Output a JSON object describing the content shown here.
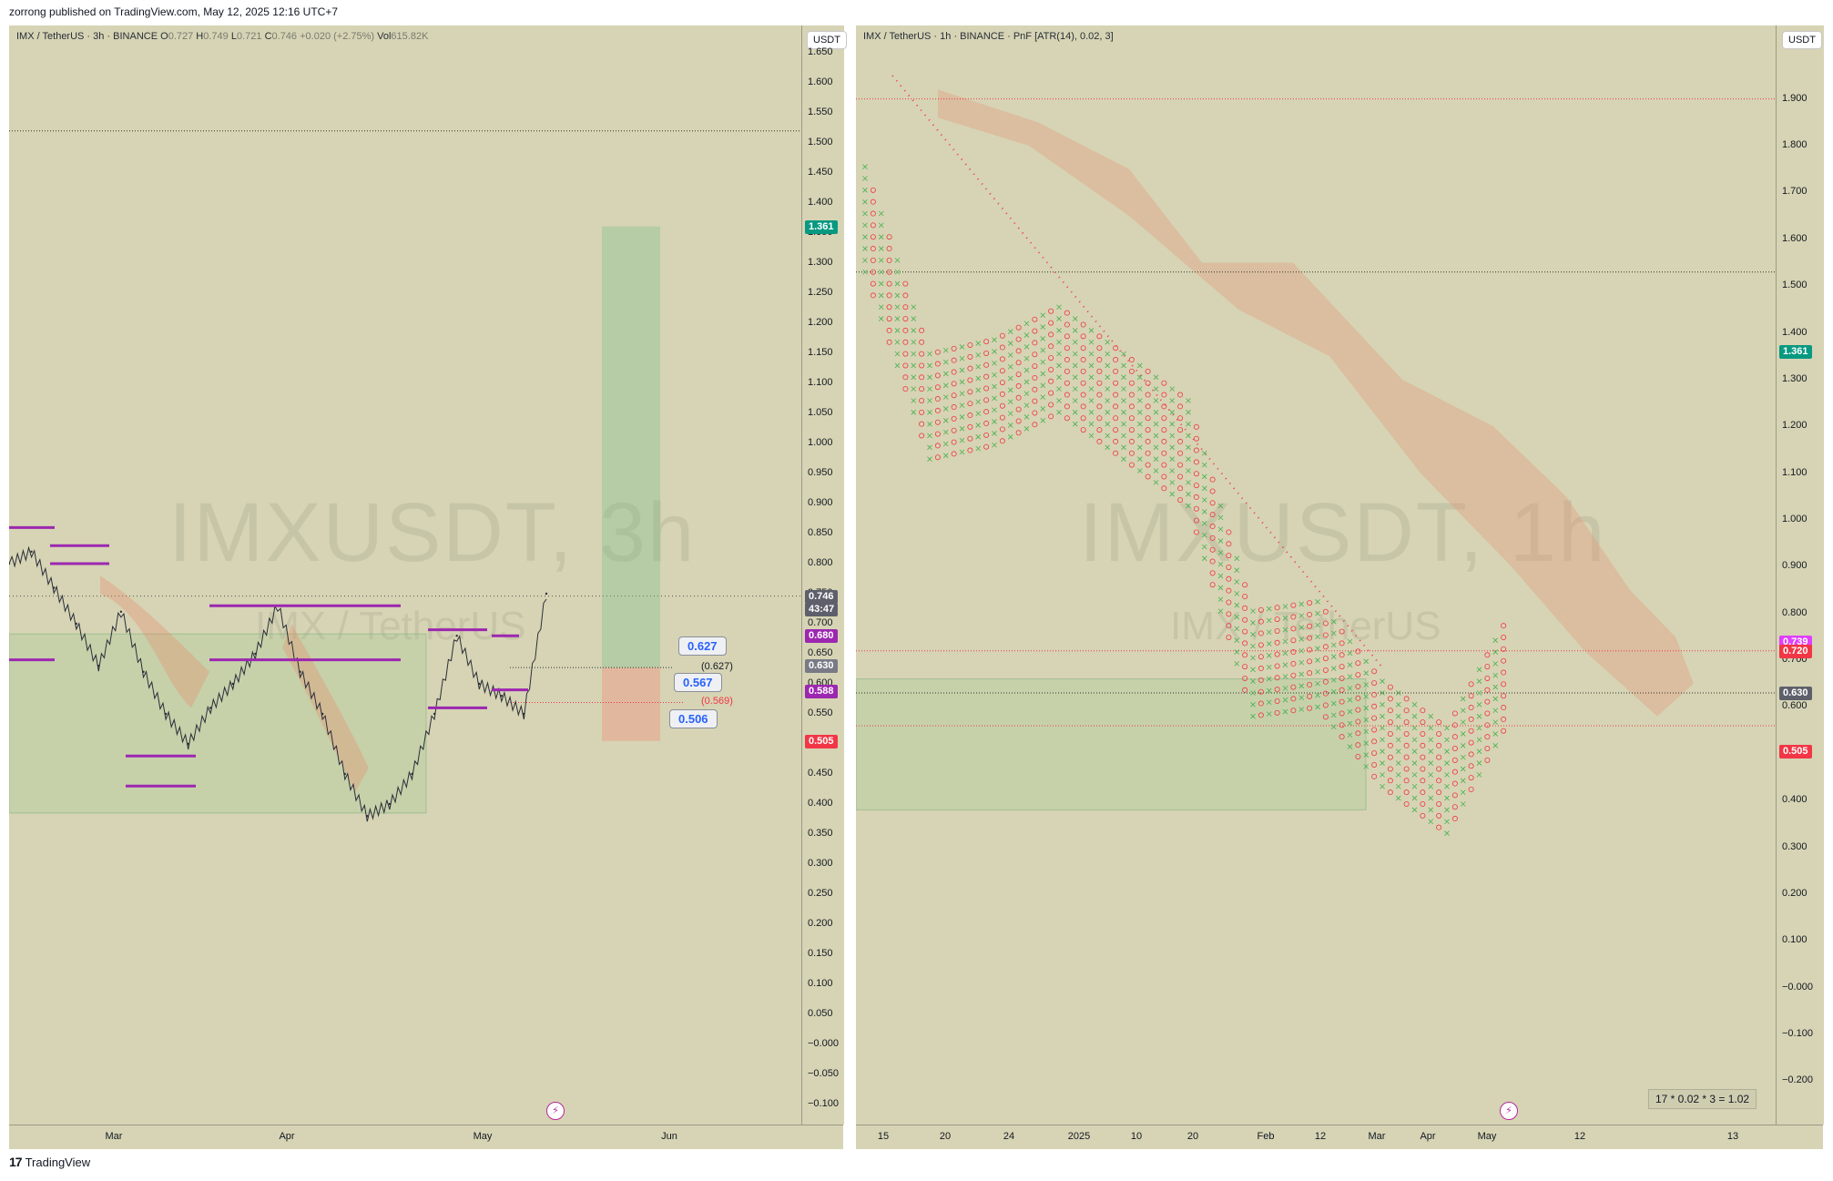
{
  "publish_line": "zorrong published on TradingView.com, May 12, 2025 12:16 UTC+7",
  "footer": {
    "logo_text": "TradingView"
  },
  "colors": {
    "panel_bg": "#d6d4b4",
    "purple": "#9c27b0",
    "red": "#f23645",
    "green": "#089981",
    "gray_badge": "#5d606b",
    "magenta": "#e040fb"
  },
  "left_chart": {
    "header": {
      "symbol": "IMX / TetherUS · 3h · BINANCE",
      "o_label": "O",
      "o": "0.727",
      "h_label": "H",
      "h": "0.749",
      "l_label": "L",
      "l": "0.721",
      "c_label": "C",
      "c": "0.746",
      "change": "+0.020 (+2.75%)",
      "vol_label": "Vol",
      "vol": "615.82K"
    },
    "watermark": "IMXUSDT, 3h",
    "watermark_sub": "IMX / TetherUS",
    "currency_button": "USDT",
    "price_badges": [
      {
        "text": "1.361",
        "price": 1.361,
        "color": "#089981"
      },
      {
        "text": "0.746",
        "price": 0.746,
        "color": "#5d606b"
      },
      {
        "text": "43:47",
        "price": 0.725,
        "color": "#5d606b"
      },
      {
        "text": "0.680",
        "price": 0.68,
        "color": "#9c27b0"
      },
      {
        "text": "0.630",
        "price": 0.63,
        "color": "#787b86"
      },
      {
        "text": "0.588",
        "price": 0.588,
        "color": "#9c27b0"
      },
      {
        "text": "0.505",
        "price": 0.505,
        "color": "#f23645"
      }
    ],
    "callouts": [
      {
        "text": "0.627",
        "price": 0.66
      },
      {
        "text": "0.567",
        "price": 0.6
      },
      {
        "text": "0.506",
        "price": 0.54
      }
    ],
    "annotations": [
      {
        "text": "(0.627)",
        "price": 0.627,
        "color": "#131722"
      },
      {
        "text": "(0.569)",
        "price": 0.569,
        "color": "#f23645"
      }
    ],
    "x_labels": [
      "Mar",
      "Apr",
      "May",
      "Jun"
    ]
  },
  "right_chart": {
    "header": {
      "symbol": "IMX / TetherUS · 1h · BINANCE · PnF [ATR(14), 0.02, 3]"
    },
    "watermark": "IMXUSDT, 1h",
    "watermark_sub": "IMX / TetherUS",
    "currency_button": "USDT",
    "price_badges": [
      {
        "text": "1.361",
        "price": 1.361,
        "color": "#089981"
      },
      {
        "text": "0.739",
        "price": 0.739,
        "color": "#e040fb"
      },
      {
        "text": "0.720",
        "price": 0.72,
        "color": "#f23645"
      },
      {
        "text": "0.630",
        "price": 0.63,
        "color": "#5d606b"
      },
      {
        "text": "0.505",
        "price": 0.505,
        "color": "#f23645"
      }
    ],
    "formula": "17 * 0.02 * 3 = 1.02",
    "x_labels": [
      "15",
      "20",
      "24",
      "2025",
      "10",
      "20",
      "Feb",
      "12",
      "Mar",
      "Apr",
      "May",
      "12",
      "13"
    ]
  },
  "chart_data": [
    {
      "type": "line",
      "title": "IMX / TetherUS · 3h · BINANCE",
      "ylim": [
        -0.1,
        1.7
      ],
      "y_ticks": [
        "1.650",
        "1.600",
        "1.550",
        "1.500",
        "1.450",
        "1.400",
        "1.350",
        "1.300",
        "1.250",
        "1.200",
        "1.150",
        "1.100",
        "1.050",
        "1.000",
        "0.950",
        "0.900",
        "0.850",
        "0.800",
        "0.750",
        "0.700",
        "0.650",
        "0.600",
        "0.550",
        "0.500",
        "0.450",
        "0.400",
        "0.350",
        "0.300",
        "0.250",
        "0.200",
        "0.150",
        "0.100",
        "0.050",
        "−0.000",
        "−0.050",
        "−0.100"
      ],
      "x_ticks": [
        "Mar",
        "Apr",
        "May",
        "Jun"
      ],
      "x": [
        "Feb 17",
        "Feb 20",
        "Feb 24",
        "Feb 27",
        "Mar 3",
        "Mar 6",
        "Mar 10",
        "Mar 13",
        "Mar 17",
        "Mar 20",
        "Mar 24",
        "Mar 27",
        "Mar 31",
        "Apr 3",
        "Apr 7",
        "Apr 10",
        "Apr 14",
        "Apr 17",
        "Apr 21",
        "Apr 24",
        "Apr 28",
        "May 1",
        "May 5",
        "May 8",
        "May 11"
      ],
      "series": [
        {
          "values": [
            0.8,
            0.82,
            0.76,
            0.7,
            0.63,
            0.72,
            0.62,
            0.55,
            0.5,
            0.56,
            0.6,
            0.65,
            0.73,
            0.62,
            0.55,
            0.45,
            0.38,
            0.4,
            0.45,
            0.55,
            0.68,
            0.6,
            0.58,
            0.55,
            0.75
          ]
        }
      ],
      "levels": [
        1.52,
        0.746,
        0.627,
        0.569
      ]
    },
    {
      "type": "scatter",
      "title": "IMX / TetherUS · 1h · BINANCE · PnF [ATR(14), 0.02, 3]",
      "ylim": [
        -0.25,
        2.0
      ],
      "y_ticks": [
        "1.900",
        "1.800",
        "1.700",
        "1.600",
        "1.500",
        "1.400",
        "1.300",
        "1.200",
        "1.100",
        "1.000",
        "0.900",
        "0.800",
        "0.700",
        "0.600",
        "0.500",
        "0.400",
        "0.300",
        "0.200",
        "0.100",
        "−0.000",
        "−0.100",
        "−0.200"
      ],
      "x_ticks": [
        "15",
        "20",
        "24",
        "2025",
        "10",
        "20",
        "Feb",
        "12",
        "Mar",
        "Apr",
        "May",
        "12",
        "13"
      ],
      "x": [
        "Dec 15",
        "Dec 20",
        "Dec 24",
        "Jan 1",
        "Jan 10",
        "Jan 20",
        "Feb 1",
        "Feb 12",
        "Mar 1",
        "Apr 1",
        "May 1"
      ],
      "series": [
        {
          "values": [
            1.65,
            1.25,
            1.28,
            1.35,
            1.25,
            1.15,
            0.7,
            0.72,
            0.55,
            0.45,
            0.7
          ]
        }
      ],
      "levels": [
        1.9,
        1.53,
        0.72,
        0.63,
        0.56
      ]
    }
  ]
}
